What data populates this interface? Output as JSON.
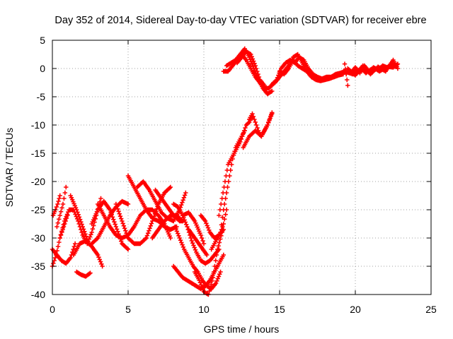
{
  "chart_data": {
    "type": "scatter",
    "title": "Day 352 of 2014, Sidereal Day-to-day VTEC variation (SDTVAR) for receiver ebre",
    "xlabel": "GPS time / hours",
    "ylabel": "SDTVAR / TECUs",
    "xlim": [
      0,
      25
    ],
    "ylim": [
      -40,
      5
    ],
    "xticks": [
      0,
      5,
      10,
      15,
      20,
      25
    ],
    "yticks": [
      5,
      0,
      -5,
      -10,
      -15,
      -20,
      -25,
      -30,
      -35,
      -40
    ],
    "grid": true,
    "marker": "plus",
    "series_color": "#ff0000",
    "series": [
      {
        "x": [
          0.0,
          0.3,
          0.6,
          0.9,
          1.2,
          1.5
        ],
        "y": [
          -32,
          -33,
          -34,
          -34.5,
          -33.5,
          -31
        ]
      },
      {
        "x": [
          0.05,
          0.2,
          0.35,
          0.5
        ],
        "y": [
          -26,
          -25,
          -24,
          -22.5
        ]
      },
      {
        "x": [
          0.0,
          0.25,
          0.5,
          0.75,
          1.0
        ],
        "y": [
          -35,
          -33,
          -30,
          -28,
          -26
        ]
      },
      {
        "x": [
          0.3,
          0.5,
          0.7,
          0.9
        ],
        "y": [
          -28,
          -26,
          -24,
          -21
        ]
      },
      {
        "x": [
          0.5,
          0.8,
          1.1,
          1.4,
          1.7,
          2.0,
          2.3,
          2.6,
          2.9,
          3.2
        ],
        "y": [
          -30,
          -27,
          -25,
          -25,
          -27,
          -29.5,
          -31,
          -29,
          -26,
          -23
        ]
      },
      {
        "x": [
          1.2,
          1.6,
          2.0,
          2.4
        ],
        "y": [
          -22.5,
          -25,
          -28,
          -31
        ]
      },
      {
        "x": [
          1.6,
          1.9,
          2.2,
          2.5
        ],
        "y": [
          -36,
          -36.5,
          -36.8,
          -36.2
        ]
      },
      {
        "x": [
          1.4,
          1.8,
          2.2,
          2.6,
          3.0,
          3.3
        ],
        "y": [
          -33,
          -31,
          -30.5,
          -31.5,
          -33,
          -35
        ]
      },
      {
        "x": [
          2.6,
          3.0,
          3.4,
          3.8,
          4.2,
          4.6,
          5.0
        ],
        "y": [
          -27.5,
          -25,
          -23.5,
          -25,
          -28,
          -31,
          -32
        ]
      },
      {
        "x": [
          3.0,
          3.4,
          3.8,
          4.2,
          4.6,
          5.0,
          5.4,
          5.8,
          6.2,
          6.6,
          7.0,
          7.4,
          7.8
        ],
        "y": [
          -24,
          -26,
          -28,
          -29.5,
          -30,
          -29.5,
          -28,
          -26,
          -25,
          -25,
          -26,
          -27.5,
          -30
        ]
      },
      {
        "x": [
          2.6,
          3.0,
          3.4,
          3.8,
          4.2,
          4.6,
          5.0
        ],
        "y": [
          -31,
          -30,
          -28,
          -26,
          -24.5,
          -23.5,
          -24
        ]
      },
      {
        "x": [
          4.2,
          4.6,
          5.0,
          5.4,
          5.8,
          6.2,
          6.6,
          7.0,
          7.4,
          7.8
        ],
        "y": [
          -24,
          -27,
          -30,
          -31,
          -31,
          -30,
          -27,
          -24,
          -22,
          -21
        ]
      },
      {
        "x": [
          5.0,
          5.4,
          5.8,
          6.2,
          6.6,
          7.0,
          7.4,
          7.8,
          8.2
        ],
        "y": [
          -19,
          -21,
          -23,
          -25,
          -26.5,
          -27,
          -28,
          -28.5,
          -28
        ]
      },
      {
        "x": [
          5.6,
          6.0,
          6.4,
          6.8,
          7.2,
          7.6,
          8.0,
          8.4,
          8.8
        ],
        "y": [
          -21,
          -20,
          -21.5,
          -23.5,
          -25.5,
          -26.5,
          -27,
          -25,
          -22
        ]
      },
      {
        "x": [
          6.6,
          7.0,
          7.4,
          7.8,
          8.2,
          8.6
        ],
        "y": [
          -30,
          -28.5,
          -27,
          -26,
          -26,
          -27
        ]
      },
      {
        "x": [
          6.8,
          7.2,
          7.6,
          8.0,
          8.4,
          8.6
        ],
        "y": [
          -21.5,
          -23,
          -24.5,
          -26,
          -27,
          -27
        ]
      },
      {
        "x": [
          8.0,
          8.3,
          8.6,
          8.9,
          9.2,
          9.5,
          9.8,
          10.1,
          10.4,
          10.7,
          11.0
        ],
        "y": [
          -24,
          -24.5,
          -26,
          -28,
          -30.5,
          -32.5,
          -34,
          -34.5,
          -34,
          -33,
          -32
        ]
      },
      {
        "x": [
          8.0,
          8.3,
          8.6,
          8.9,
          9.2,
          9.5,
          9.8,
          10.1,
          10.4,
          10.7,
          11.0,
          11.3
        ],
        "y": [
          -35,
          -36,
          -37,
          -37.5,
          -38,
          -38.5,
          -39,
          -38.5,
          -37.5,
          -36,
          -34.5,
          -33
        ]
      },
      {
        "x": [
          8.1,
          8.4,
          8.7,
          9.0,
          9.3,
          9.6,
          9.9,
          10.2,
          10.5,
          10.8,
          11.1
        ],
        "y": [
          -28,
          -30,
          -32,
          -33.5,
          -35,
          -36,
          -37.5,
          -38.5,
          -39,
          -38,
          -36
        ]
      },
      {
        "x": [
          8.6,
          9.0,
          9.4,
          9.8,
          10.0
        ],
        "y": [
          -26,
          -25.5,
          -27,
          -29.5,
          -31
        ]
      },
      {
        "x": [
          9.0,
          9.4,
          9.8,
          10.2
        ],
        "y": [
          -28.5,
          -30,
          -31.5,
          -33
        ]
      },
      {
        "x": [
          9.4,
          9.7,
          10.0,
          10.3,
          10.6,
          10.9,
          11.2
        ],
        "y": [
          -36,
          -37.5,
          -39.5,
          -40,
          -37,
          -32,
          -29
        ]
      },
      {
        "x": [
          9.8,
          10.1,
          10.4,
          10.7,
          11.0,
          11.3
        ],
        "y": [
          -26,
          -27,
          -29,
          -30,
          -29.5,
          -28.5
        ]
      },
      {
        "x": [
          10.5,
          10.7,
          10.9,
          11.1,
          11.3,
          11.5
        ],
        "y": [
          -32,
          -31,
          -30,
          -29,
          -27.5,
          -25
        ]
      },
      {
        "x": [
          11.0,
          11.2,
          11.4,
          11.6,
          11.8,
          12.0,
          12.2,
          12.4,
          12.6,
          12.8,
          13.0,
          13.2
        ],
        "y": [
          -26,
          -23,
          -20,
          -17,
          -16,
          -15,
          -14,
          -13,
          -11.5,
          -10,
          -9.5,
          -8.5
        ]
      },
      {
        "x": [
          11.1,
          11.3,
          11.5,
          11.7,
          11.9,
          12.1,
          12.3,
          12.5,
          12.7
        ],
        "y": [
          -29,
          -25,
          -22,
          -19,
          -16,
          -14,
          -13,
          -12,
          -11
        ]
      },
      {
        "x": [
          12.6,
          13.0,
          13.4,
          13.8,
          14.2,
          14.5
        ],
        "y": [
          -14,
          -12,
          -11,
          -12,
          -10,
          -8
        ]
      },
      {
        "x": [
          13.0,
          13.2,
          13.4,
          13.6,
          13.8,
          14.0,
          14.2,
          14.4,
          14.5
        ],
        "y": [
          -9,
          -8,
          -9.5,
          -11,
          -12,
          -11,
          -10,
          -8.5,
          -7.8
        ]
      },
      {
        "x": [
          11.3,
          11.6,
          11.9,
          12.2,
          12.5,
          12.8,
          13.1,
          13.4,
          13.7,
          14.0,
          14.3,
          14.6
        ],
        "y": [
          -0.5,
          -0.5,
          0.5,
          1.5,
          2.5,
          1.5,
          0,
          -1.5,
          -2.5,
          -3.5,
          -3.5,
          -2.5
        ]
      },
      {
        "x": [
          11.5,
          11.8,
          12.1,
          12.4,
          12.7,
          13.0,
          13.3,
          13.6,
          13.9,
          14.2,
          14.5
        ],
        "y": [
          0.5,
          1,
          1.5,
          2.5,
          3.5,
          2,
          0,
          -2,
          -3.5,
          -4.5,
          -4
        ]
      },
      {
        "x": [
          12.2,
          12.5,
          12.8,
          13.1,
          13.4,
          13.7,
          14.0
        ],
        "y": [
          1,
          2,
          3,
          2.5,
          0.5,
          -2,
          -3
        ]
      },
      {
        "x": [
          14.5,
          14.8,
          15.1,
          15.4,
          15.7,
          16.0,
          16.3,
          16.6,
          16.9,
          17.2,
          17.5,
          17.8,
          18.1,
          18.4,
          18.7,
          19.0,
          19.3,
          19.6,
          19.9
        ],
        "y": [
          -3,
          -2,
          0,
          1,
          1.5,
          1,
          2,
          1.5,
          0,
          -1,
          -1.5,
          -1.8,
          -1.5,
          -1.5,
          -1,
          -0.8,
          -0.5,
          -0.8,
          -1
        ]
      },
      {
        "x": [
          14.7,
          15.0,
          15.3,
          15.6,
          15.9,
          16.2,
          16.5,
          16.8,
          17.1,
          17.4,
          17.7,
          18.0,
          18.3,
          18.6,
          18.9,
          19.2
        ],
        "y": [
          -2.5,
          -1.5,
          -0.5,
          0.5,
          2,
          2.5,
          1,
          -0.5,
          -1.5,
          -2,
          -2.2,
          -2,
          -1.8,
          -1.5,
          -1.2,
          -1
        ]
      },
      {
        "x": [
          15.0,
          15.3,
          15.6,
          15.9,
          16.2,
          16.5,
          16.8,
          17.1,
          17.4
        ],
        "y": [
          -0.5,
          -1,
          0,
          1.5,
          0.5,
          0,
          -0.5,
          -1,
          -1.5
        ]
      },
      {
        "x": [
          19.3,
          19.4,
          19.5
        ],
        "y": [
          0.8,
          -1,
          -3
        ]
      },
      {
        "x": [
          19.5,
          19.8,
          20.1,
          20.4,
          20.7,
          21.0,
          21.3,
          21.6,
          21.9,
          22.2,
          22.5,
          22.8
        ],
        "y": [
          -0.5,
          -1,
          -0.5,
          0,
          -0.8,
          -0.2,
          0,
          -0.5,
          0,
          0.3,
          0.2,
          0.8
        ]
      },
      {
        "x": [
          19.7,
          20.0,
          20.3,
          20.6,
          20.9,
          21.2,
          21.5,
          21.8,
          22.1,
          22.4,
          22.7
        ],
        "y": [
          -0.8,
          0.2,
          -0.8,
          0.5,
          -0.5,
          0.2,
          -0.3,
          0.5,
          0.2,
          0.6,
          0.3
        ]
      },
      {
        "x": [
          19.5,
          20.0,
          20.5,
          21.0,
          21.5,
          22.0,
          22.5,
          22.8
        ],
        "y": [
          0,
          -1.2,
          0.5,
          -1,
          0.3,
          -0.5,
          1.5,
          0
        ]
      }
    ]
  }
}
